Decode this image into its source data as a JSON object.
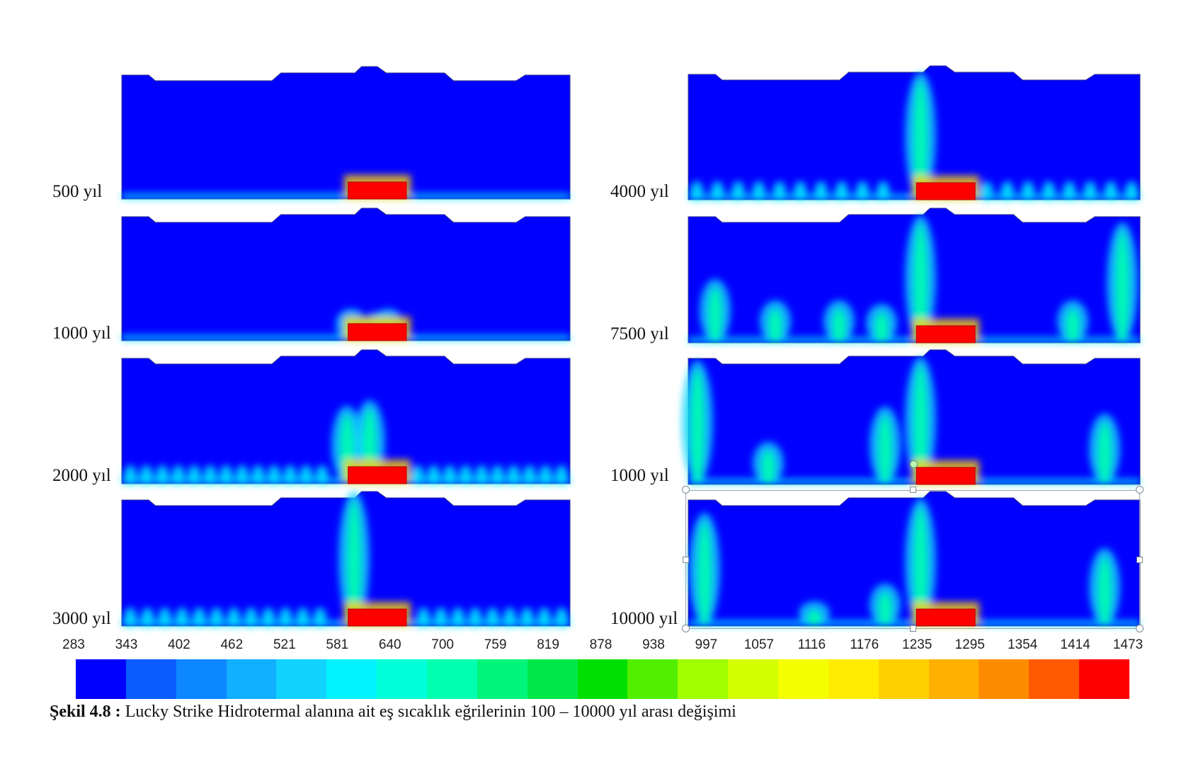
{
  "panels": [
    {
      "label": "500 yıl"
    },
    {
      "label": "1000 yıl"
    },
    {
      "label": "2000 yıl"
    },
    {
      "label": "3000 yıl"
    },
    {
      "label": "4000 yıl"
    },
    {
      "label": "7500 yıl"
    },
    {
      "label": "1000 yıl"
    },
    {
      "label": "10000 yıl"
    }
  ],
  "legend": {
    "ticks": [
      "283",
      "343",
      "402",
      "462",
      "521",
      "581",
      "640",
      "700",
      "759",
      "819",
      "878",
      "938",
      "997",
      "1057",
      "1116",
      "1176",
      "1235",
      "1295",
      "1354",
      "1414",
      "1473"
    ],
    "colors": [
      "#0000ff",
      "#0a5cff",
      "#0d87ff",
      "#12aeff",
      "#12d3ff",
      "#00f4ff",
      "#00ffd9",
      "#00ffae",
      "#00f57a",
      "#00e84a",
      "#00e000",
      "#52ef00",
      "#a0ff00",
      "#d3ff00",
      "#f5ff00",
      "#ffec00",
      "#ffd000",
      "#ffb000",
      "#ff8c00",
      "#ff5a00",
      "#ff0000"
    ]
  },
  "caption": {
    "number": "Şekil 4.8 :",
    "text": " Lucky Strike Hidrotermal alanına ait eş sıcaklık eğrilerinin 100 – 10000 yıl arası değişimi"
  }
}
